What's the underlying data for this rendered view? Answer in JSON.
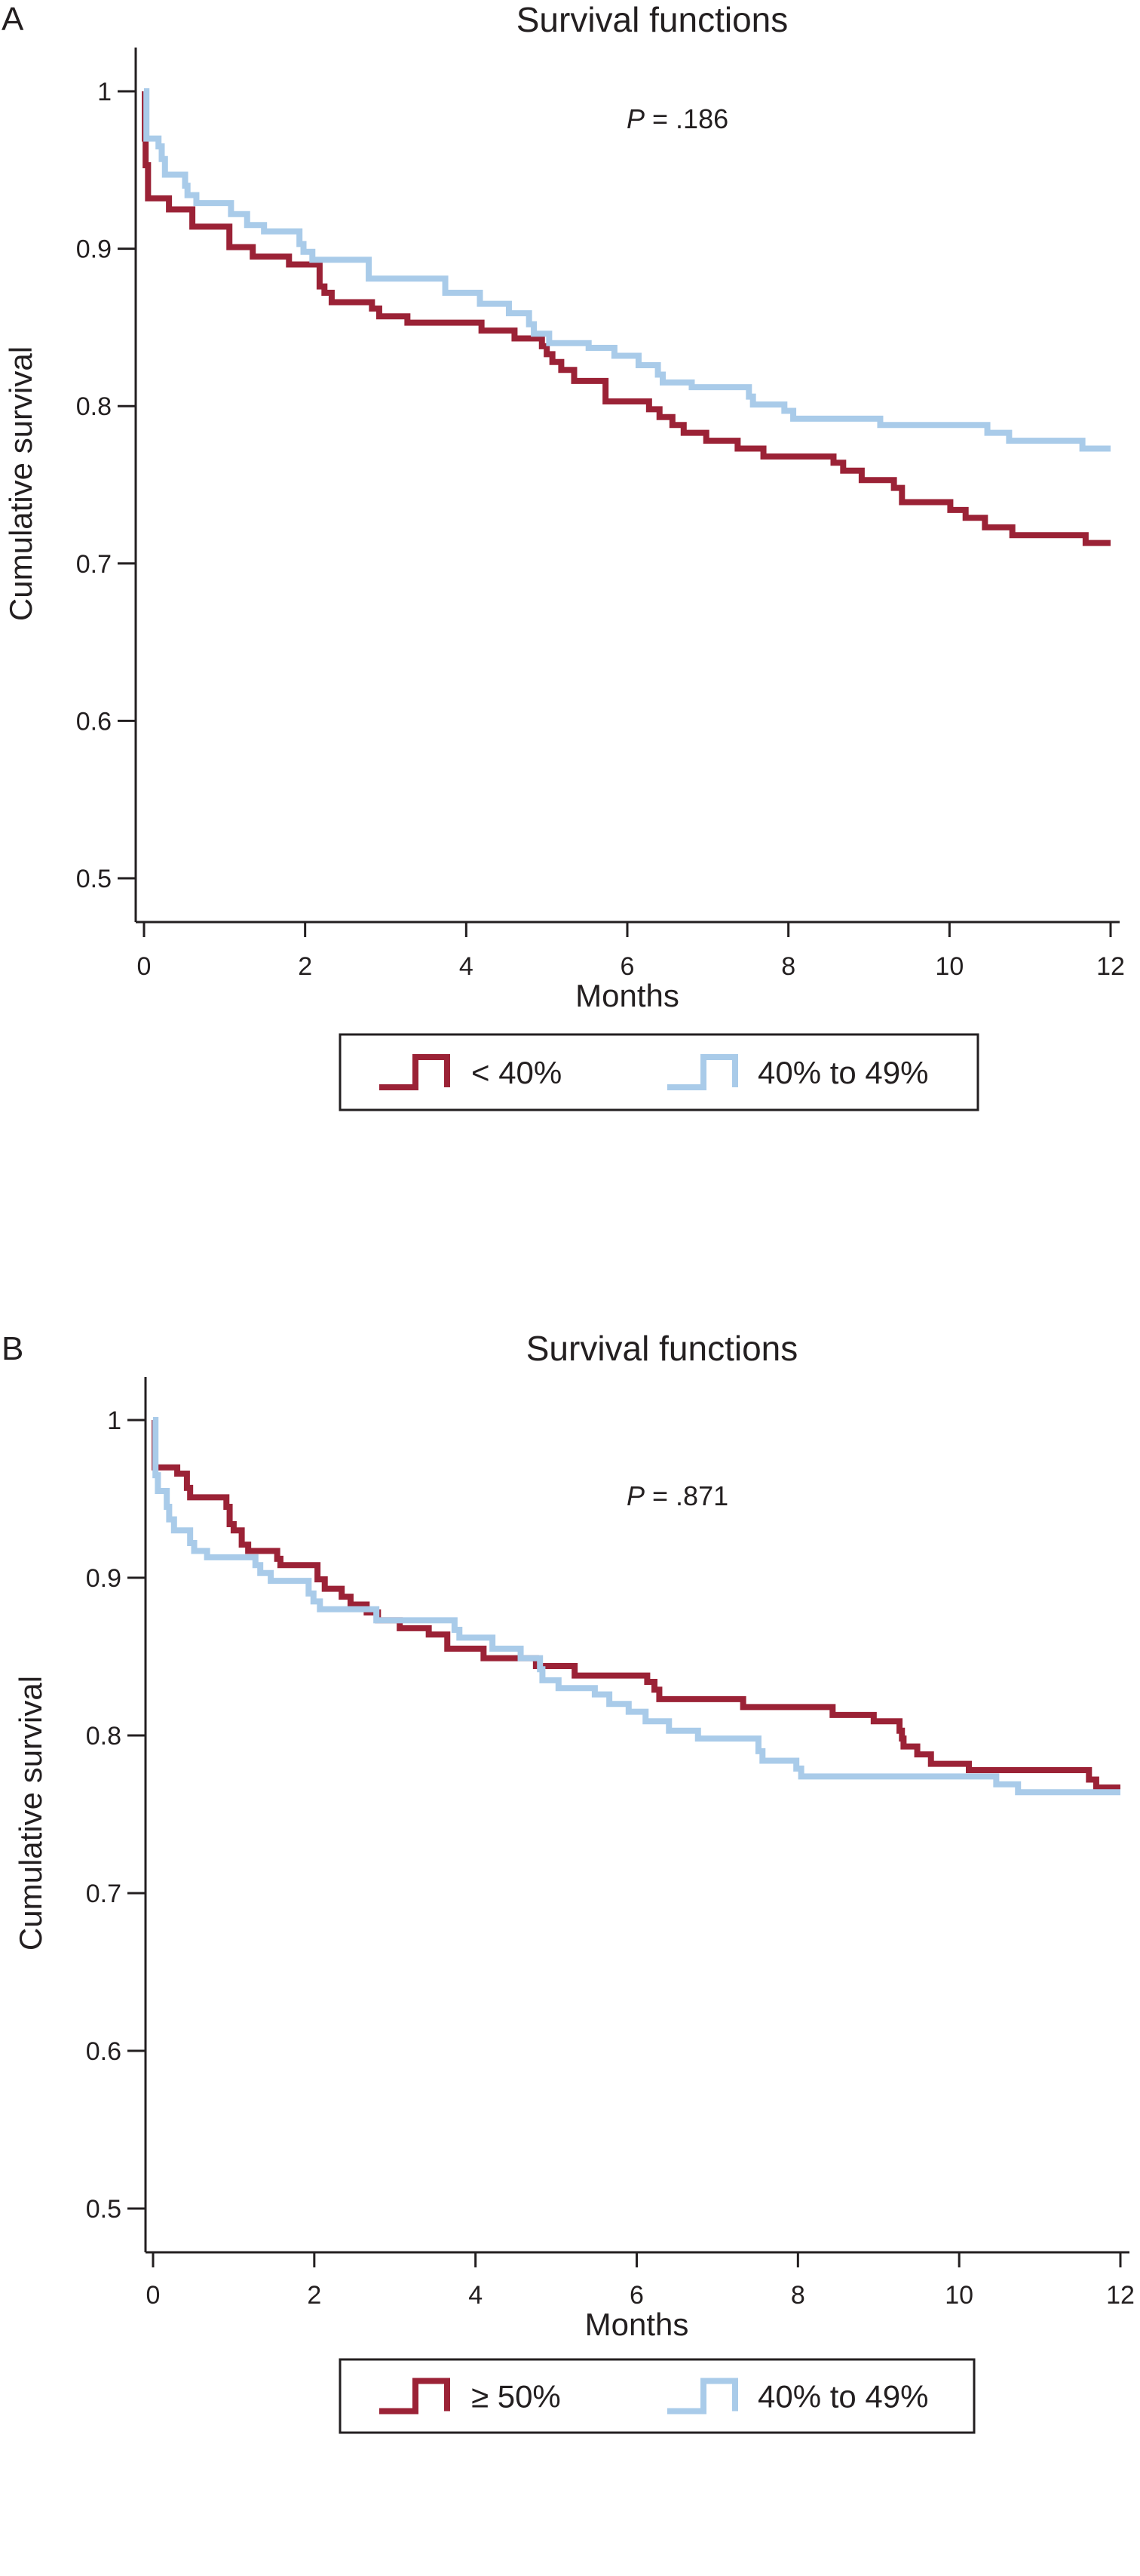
{
  "colors": {
    "red_series": "#9b2236",
    "blue_series": "#a9cbe9",
    "axis": "#231f20"
  },
  "chart_data": [
    {
      "type": "line",
      "subtype": "kaplan-meier step",
      "panel_label": "A",
      "title": "Survival functions",
      "xlabel": "Months",
      "ylabel": "Cumulative survival",
      "annotation": {
        "italic": "P",
        "text": " = .186"
      },
      "xlim": [
        0,
        12
      ],
      "ylim": [
        0.5,
        1
      ],
      "xticks": [
        "0",
        "2",
        "4",
        "6",
        "8",
        "10",
        "12"
      ],
      "yticks": [
        "0.5",
        "0.6",
        "0.7",
        "0.8",
        "0.9",
        "1"
      ],
      "grid": false,
      "legend_position": "bottom",
      "series": [
        {
          "name": "< 40%",
          "color": "#9b2236",
          "steps": [
            [
              0,
              1
            ],
            [
              0.01,
              0.97
            ],
            [
              0.02,
              0.953
            ],
            [
              0.05,
              0.932
            ],
            [
              0.31,
              0.925
            ],
            [
              0.6,
              0.914
            ],
            [
              1.06,
              0.901
            ],
            [
              1.35,
              0.895
            ],
            [
              1.8,
              0.89
            ],
            [
              2.18,
              0.876
            ],
            [
              2.24,
              0.872
            ],
            [
              2.33,
              0.866
            ],
            [
              2.83,
              0.862
            ],
            [
              2.92,
              0.857
            ],
            [
              3.27,
              0.853
            ],
            [
              4.19,
              0.848
            ],
            [
              4.6,
              0.843
            ],
            [
              4.94,
              0.838
            ],
            [
              5.0,
              0.833
            ],
            [
              5.07,
              0.828
            ],
            [
              5.18,
              0.823
            ],
            [
              5.34,
              0.816
            ],
            [
              5.73,
              0.803
            ],
            [
              6.27,
              0.798
            ],
            [
              6.4,
              0.793
            ],
            [
              6.56,
              0.788
            ],
            [
              6.7,
              0.783
            ],
            [
              6.98,
              0.778
            ],
            [
              7.37,
              0.773
            ],
            [
              7.69,
              0.768
            ],
            [
              8.56,
              0.764
            ],
            [
              8.68,
              0.759
            ],
            [
              8.91,
              0.753
            ],
            [
              9.31,
              0.748
            ],
            [
              9.41,
              0.739
            ],
            [
              10.01,
              0.734
            ],
            [
              10.2,
              0.729
            ],
            [
              10.44,
              0.723
            ],
            [
              10.78,
              0.718
            ],
            [
              11.69,
              0.713
            ],
            [
              12,
              0.713
            ]
          ]
        },
        {
          "name": "40% to 49%",
          "color": "#a9cbe9",
          "steps": [
            [
              0,
              1
            ],
            [
              0.03,
              0.97
            ],
            [
              0.18,
              0.965
            ],
            [
              0.22,
              0.957
            ],
            [
              0.26,
              0.947
            ],
            [
              0.51,
              0.94
            ],
            [
              0.54,
              0.934
            ],
            [
              0.65,
              0.929
            ],
            [
              1.08,
              0.922
            ],
            [
              1.28,
              0.915
            ],
            [
              1.49,
              0.911
            ],
            [
              1.93,
              0.903
            ],
            [
              1.98,
              0.898
            ],
            [
              2.09,
              0.893
            ],
            [
              2.79,
              0.881
            ],
            [
              3.74,
              0.872
            ],
            [
              4.17,
              0.865
            ],
            [
              4.53,
              0.859
            ],
            [
              4.78,
              0.852
            ],
            [
              4.84,
              0.846
            ],
            [
              5.03,
              0.84
            ],
            [
              5.52,
              0.837
            ],
            [
              5.84,
              0.832
            ],
            [
              6.14,
              0.826
            ],
            [
              6.38,
              0.82
            ],
            [
              6.44,
              0.815
            ],
            [
              6.8,
              0.812
            ],
            [
              7.51,
              0.806
            ],
            [
              7.56,
              0.801
            ],
            [
              7.95,
              0.797
            ],
            [
              8.06,
              0.792
            ],
            [
              9.14,
              0.788
            ],
            [
              10.47,
              0.783
            ],
            [
              10.74,
              0.778
            ],
            [
              11.65,
              0.773
            ],
            [
              12,
              0.773
            ]
          ]
        }
      ]
    },
    {
      "type": "line",
      "subtype": "kaplan-meier step",
      "panel_label": "B",
      "title": "Survival functions",
      "xlabel": "Months",
      "ylabel": "Cumulative survival",
      "annotation": {
        "italic": "P",
        "text": " = .871"
      },
      "xlim": [
        0,
        12
      ],
      "ylim": [
        0.5,
        1
      ],
      "xticks": [
        "0",
        "2",
        "4",
        "6",
        "8",
        "10",
        "12"
      ],
      "yticks": [
        "0.5",
        "0.6",
        "0.7",
        "0.8",
        "0.9",
        "1"
      ],
      "grid": false,
      "legend_position": "bottom",
      "series": [
        {
          "name": "≥ 50%",
          "color": "#9b2236",
          "steps": [
            [
              0,
              1
            ],
            [
              0.02,
              0.97
            ],
            [
              0.3,
              0.966
            ],
            [
              0.42,
              0.957
            ],
            [
              0.46,
              0.951
            ],
            [
              0.91,
              0.945
            ],
            [
              0.95,
              0.934
            ],
            [
              1.0,
              0.93
            ],
            [
              1.1,
              0.921
            ],
            [
              1.18,
              0.917
            ],
            [
              1.54,
              0.912
            ],
            [
              1.58,
              0.908
            ],
            [
              2.04,
              0.899
            ],
            [
              2.13,
              0.893
            ],
            [
              2.34,
              0.888
            ],
            [
              2.45,
              0.883
            ],
            [
              2.65,
              0.878
            ],
            [
              2.79,
              0.873
            ],
            [
              3.06,
              0.868
            ],
            [
              3.42,
              0.864
            ],
            [
              3.65,
              0.855
            ],
            [
              4.1,
              0.849
            ],
            [
              4.75,
              0.844
            ],
            [
              5.23,
              0.838
            ],
            [
              6.13,
              0.834
            ],
            [
              6.22,
              0.829
            ],
            [
              6.28,
              0.823
            ],
            [
              7.32,
              0.818
            ],
            [
              8.43,
              0.813
            ],
            [
              8.94,
              0.809
            ],
            [
              9.26,
              0.803
            ],
            [
              9.29,
              0.798
            ],
            [
              9.31,
              0.793
            ],
            [
              9.48,
              0.788
            ],
            [
              9.65,
              0.782
            ],
            [
              10.12,
              0.778
            ],
            [
              11.61,
              0.772
            ],
            [
              11.7,
              0.767
            ],
            [
              12,
              0.767
            ]
          ]
        },
        {
          "name": "40% to 49%",
          "color": "#a9cbe9",
          "steps": [
            [
              0,
              1
            ],
            [
              0.03,
              0.965
            ],
            [
              0.06,
              0.955
            ],
            [
              0.17,
              0.945
            ],
            [
              0.2,
              0.937
            ],
            [
              0.26,
              0.93
            ],
            [
              0.46,
              0.922
            ],
            [
              0.51,
              0.917
            ],
            [
              0.67,
              0.913
            ],
            [
              1.27,
              0.908
            ],
            [
              1.33,
              0.903
            ],
            [
              1.46,
              0.898
            ],
            [
              1.93,
              0.89
            ],
            [
              1.99,
              0.885
            ],
            [
              2.07,
              0.88
            ],
            [
              2.77,
              0.873
            ],
            [
              3.74,
              0.867
            ],
            [
              3.8,
              0.862
            ],
            [
              4.21,
              0.855
            ],
            [
              4.56,
              0.849
            ],
            [
              4.8,
              0.842
            ],
            [
              4.83,
              0.835
            ],
            [
              5.03,
              0.83
            ],
            [
              5.48,
              0.826
            ],
            [
              5.66,
              0.82
            ],
            [
              5.9,
              0.815
            ],
            [
              6.11,
              0.809
            ],
            [
              6.4,
              0.803
            ],
            [
              6.76,
              0.798
            ],
            [
              7.51,
              0.79
            ],
            [
              7.56,
              0.784
            ],
            [
              7.98,
              0.779
            ],
            [
              8.04,
              0.774
            ],
            [
              10.46,
              0.769
            ],
            [
              10.73,
              0.764
            ],
            [
              12,
              0.764
            ]
          ]
        }
      ]
    }
  ]
}
